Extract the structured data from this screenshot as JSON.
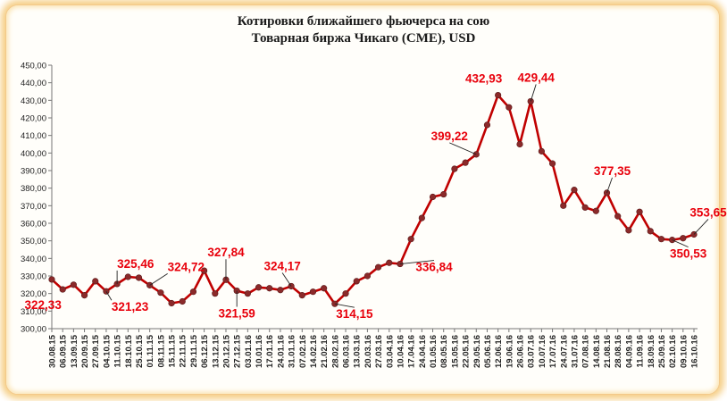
{
  "title_line1": "Котировки ближайшего фьючерса на сою",
  "title_line2": "Товарная биржа Чикаго (CME), USD",
  "chart_data": {
    "type": "line",
    "title": "Котировки ближайшего фьючерса на сою Товарная биржа Чикаго (CME), USD",
    "xlabel": "",
    "ylabel": "",
    "ylim": [
      300,
      450
    ],
    "yticks": [
      "300,00",
      "310,00",
      "320,00",
      "330,00",
      "340,00",
      "350,00",
      "360,00",
      "370,00",
      "380,00",
      "390,00",
      "400,00",
      "410,00",
      "420,00",
      "430,00",
      "440,00",
      "450,00"
    ],
    "grid": false,
    "legend": "none",
    "line_color": "#c00000",
    "marker_color": "#8b2a2a",
    "label_color": "#e8000b",
    "categories": [
      "30.08.15",
      "06.09.15",
      "13.09.15",
      "20.09.15",
      "27.09.15",
      "04.10.15",
      "11.10.15",
      "18.10.15",
      "25.10.15",
      "01.11.15",
      "08.11.15",
      "15.11.15",
      "22.11.15",
      "29.11.15",
      "06.12.15",
      "13.12.15",
      "20.12.15",
      "27.12.15",
      "03.01.16",
      "10.01.16",
      "17.01.16",
      "24.01.16",
      "31.01.16",
      "07.02.16",
      "14.02.16",
      "21.02.16",
      "28.02.16",
      "06.03.16",
      "13.03.16",
      "20.03.16",
      "27.03.16",
      "03.04.16",
      "10.04.16",
      "17.04.16",
      "24.04.16",
      "01.05.16",
      "08.05.16",
      "15.05.16",
      "22.05.16",
      "29.05.16",
      "05.06.16",
      "12.06.16",
      "19.06.16",
      "26.06.16",
      "03.07.16",
      "10.07.16",
      "17.07.16",
      "24.07.16",
      "31.07.16",
      "07.08.16",
      "14.08.16",
      "21.08.16",
      "28.08.16",
      "04.09.16",
      "11.09.16",
      "18.09.16",
      "25.09.16",
      "02.10.16",
      "09.10.16",
      "16.10.16"
    ],
    "series": [
      {
        "values": [
          328.0,
          322.33,
          325.0,
          319.0,
          327.0,
          321.23,
          325.46,
          329.5,
          329.0,
          324.72,
          320.5,
          314.5,
          315.5,
          321.0,
          333.0,
          320.0,
          327.84,
          321.59,
          320.0,
          323.5,
          323.0,
          322.0,
          324.17,
          319.0,
          321.0,
          323.0,
          314.15,
          320.0,
          327.0,
          330.0,
          335.0,
          337.5,
          336.84,
          351.0,
          363.0,
          375.0,
          376.5,
          391.0,
          394.5,
          399.22,
          416.0,
          432.93,
          426.0,
          405.0,
          429.44,
          401.0,
          394.0,
          370.0,
          379.0,
          369.0,
          367.0,
          377.35,
          364.0,
          356.0,
          366.5,
          355.5,
          351.0,
          350.53,
          351.5,
          353.65
        ]
      }
    ],
    "annotations": [
      {
        "index": 1,
        "text": "322,33"
      },
      {
        "index": 5,
        "text": "321,23"
      },
      {
        "index": 6,
        "text": "325,46"
      },
      {
        "index": 9,
        "text": "324,72"
      },
      {
        "index": 16,
        "text": "327,84"
      },
      {
        "index": 17,
        "text": "321,59"
      },
      {
        "index": 22,
        "text": "324,17"
      },
      {
        "index": 26,
        "text": "314,15"
      },
      {
        "index": 32,
        "text": "336,84"
      },
      {
        "index": 39,
        "text": "399,22"
      },
      {
        "index": 41,
        "text": "432,93"
      },
      {
        "index": 44,
        "text": "429,44"
      },
      {
        "index": 51,
        "text": "377,35"
      },
      {
        "index": 57,
        "text": "350,53"
      },
      {
        "index": 59,
        "text": "353,65"
      }
    ]
  }
}
